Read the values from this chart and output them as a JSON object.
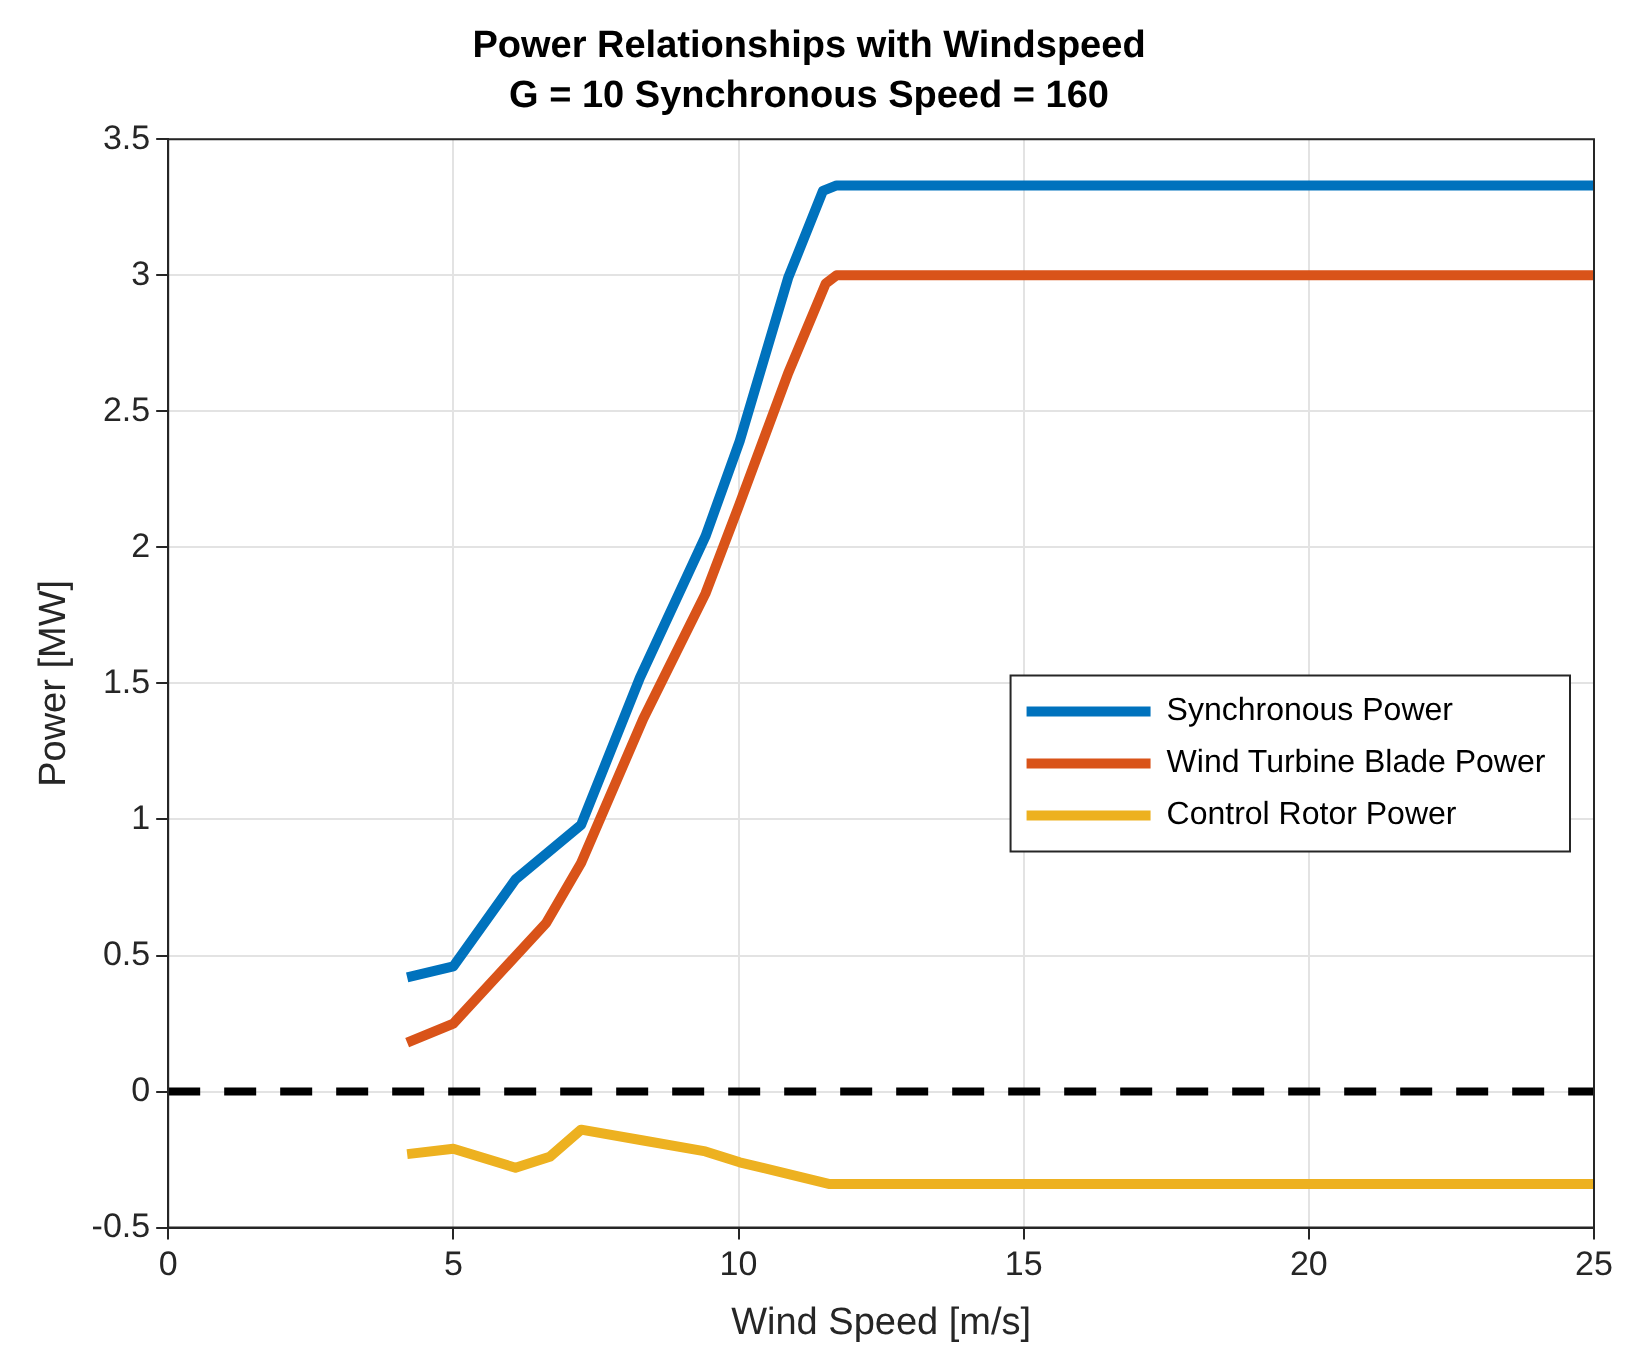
{
  "chart_data": {
    "type": "line",
    "title": "Power Relationships with Windspeed",
    "subtitle": "G = 10 Synchronous Speed = 160",
    "xlabel": "Wind Speed [m/s]",
    "ylabel": "Power [MW]",
    "xlim": [
      0,
      25
    ],
    "xticks": [
      0,
      5,
      10,
      15,
      20,
      25
    ],
    "ylim": [
      -0.5,
      3.5
    ],
    "yticks": [
      -0.5,
      0,
      0.5,
      1,
      1.5,
      2,
      2.5,
      3,
      3.5
    ],
    "grid": true,
    "legend": "right",
    "marker": "none",
    "line_style": "solid",
    "series": [
      {
        "name": "Synchronous Power",
        "color": "#0072bd",
        "x": [
          4.19,
          5,
          6.09,
          7.24,
          8.27,
          9.42,
          10.02,
          10.87,
          11.48,
          11.72,
          25
        ],
        "values": [
          0.42,
          0.46,
          0.78,
          0.98,
          1.52,
          2.04,
          2.39,
          2.99,
          3.31,
          3.33,
          3.33
        ]
      },
      {
        "name": "Wind Turbine Blade Power",
        "color": "#d95319",
        "x": [
          4.19,
          5,
          6.63,
          7.24,
          8.33,
          9.42,
          10.02,
          10.87,
          11.53,
          11.72,
          25
        ],
        "values": [
          0.18,
          0.25,
          0.62,
          0.84,
          1.37,
          1.83,
          2.16,
          2.64,
          2.97,
          3.0,
          3.0
        ]
      },
      {
        "name": "Control Rotor Power",
        "color": "#edb120",
        "x": [
          4.19,
          5,
          6.09,
          6.69,
          7.24,
          8.33,
          9.42,
          10.02,
          11.6,
          25
        ],
        "values": [
          -0.23,
          -0.21,
          -0.28,
          -0.24,
          -0.14,
          -0.18,
          -0.22,
          -0.26,
          -0.34,
          -0.34
        ]
      }
    ],
    "ref_lines": [
      {
        "axis": "y",
        "value": 0,
        "color": "#000000",
        "line_style": "dashed"
      }
    ]
  }
}
